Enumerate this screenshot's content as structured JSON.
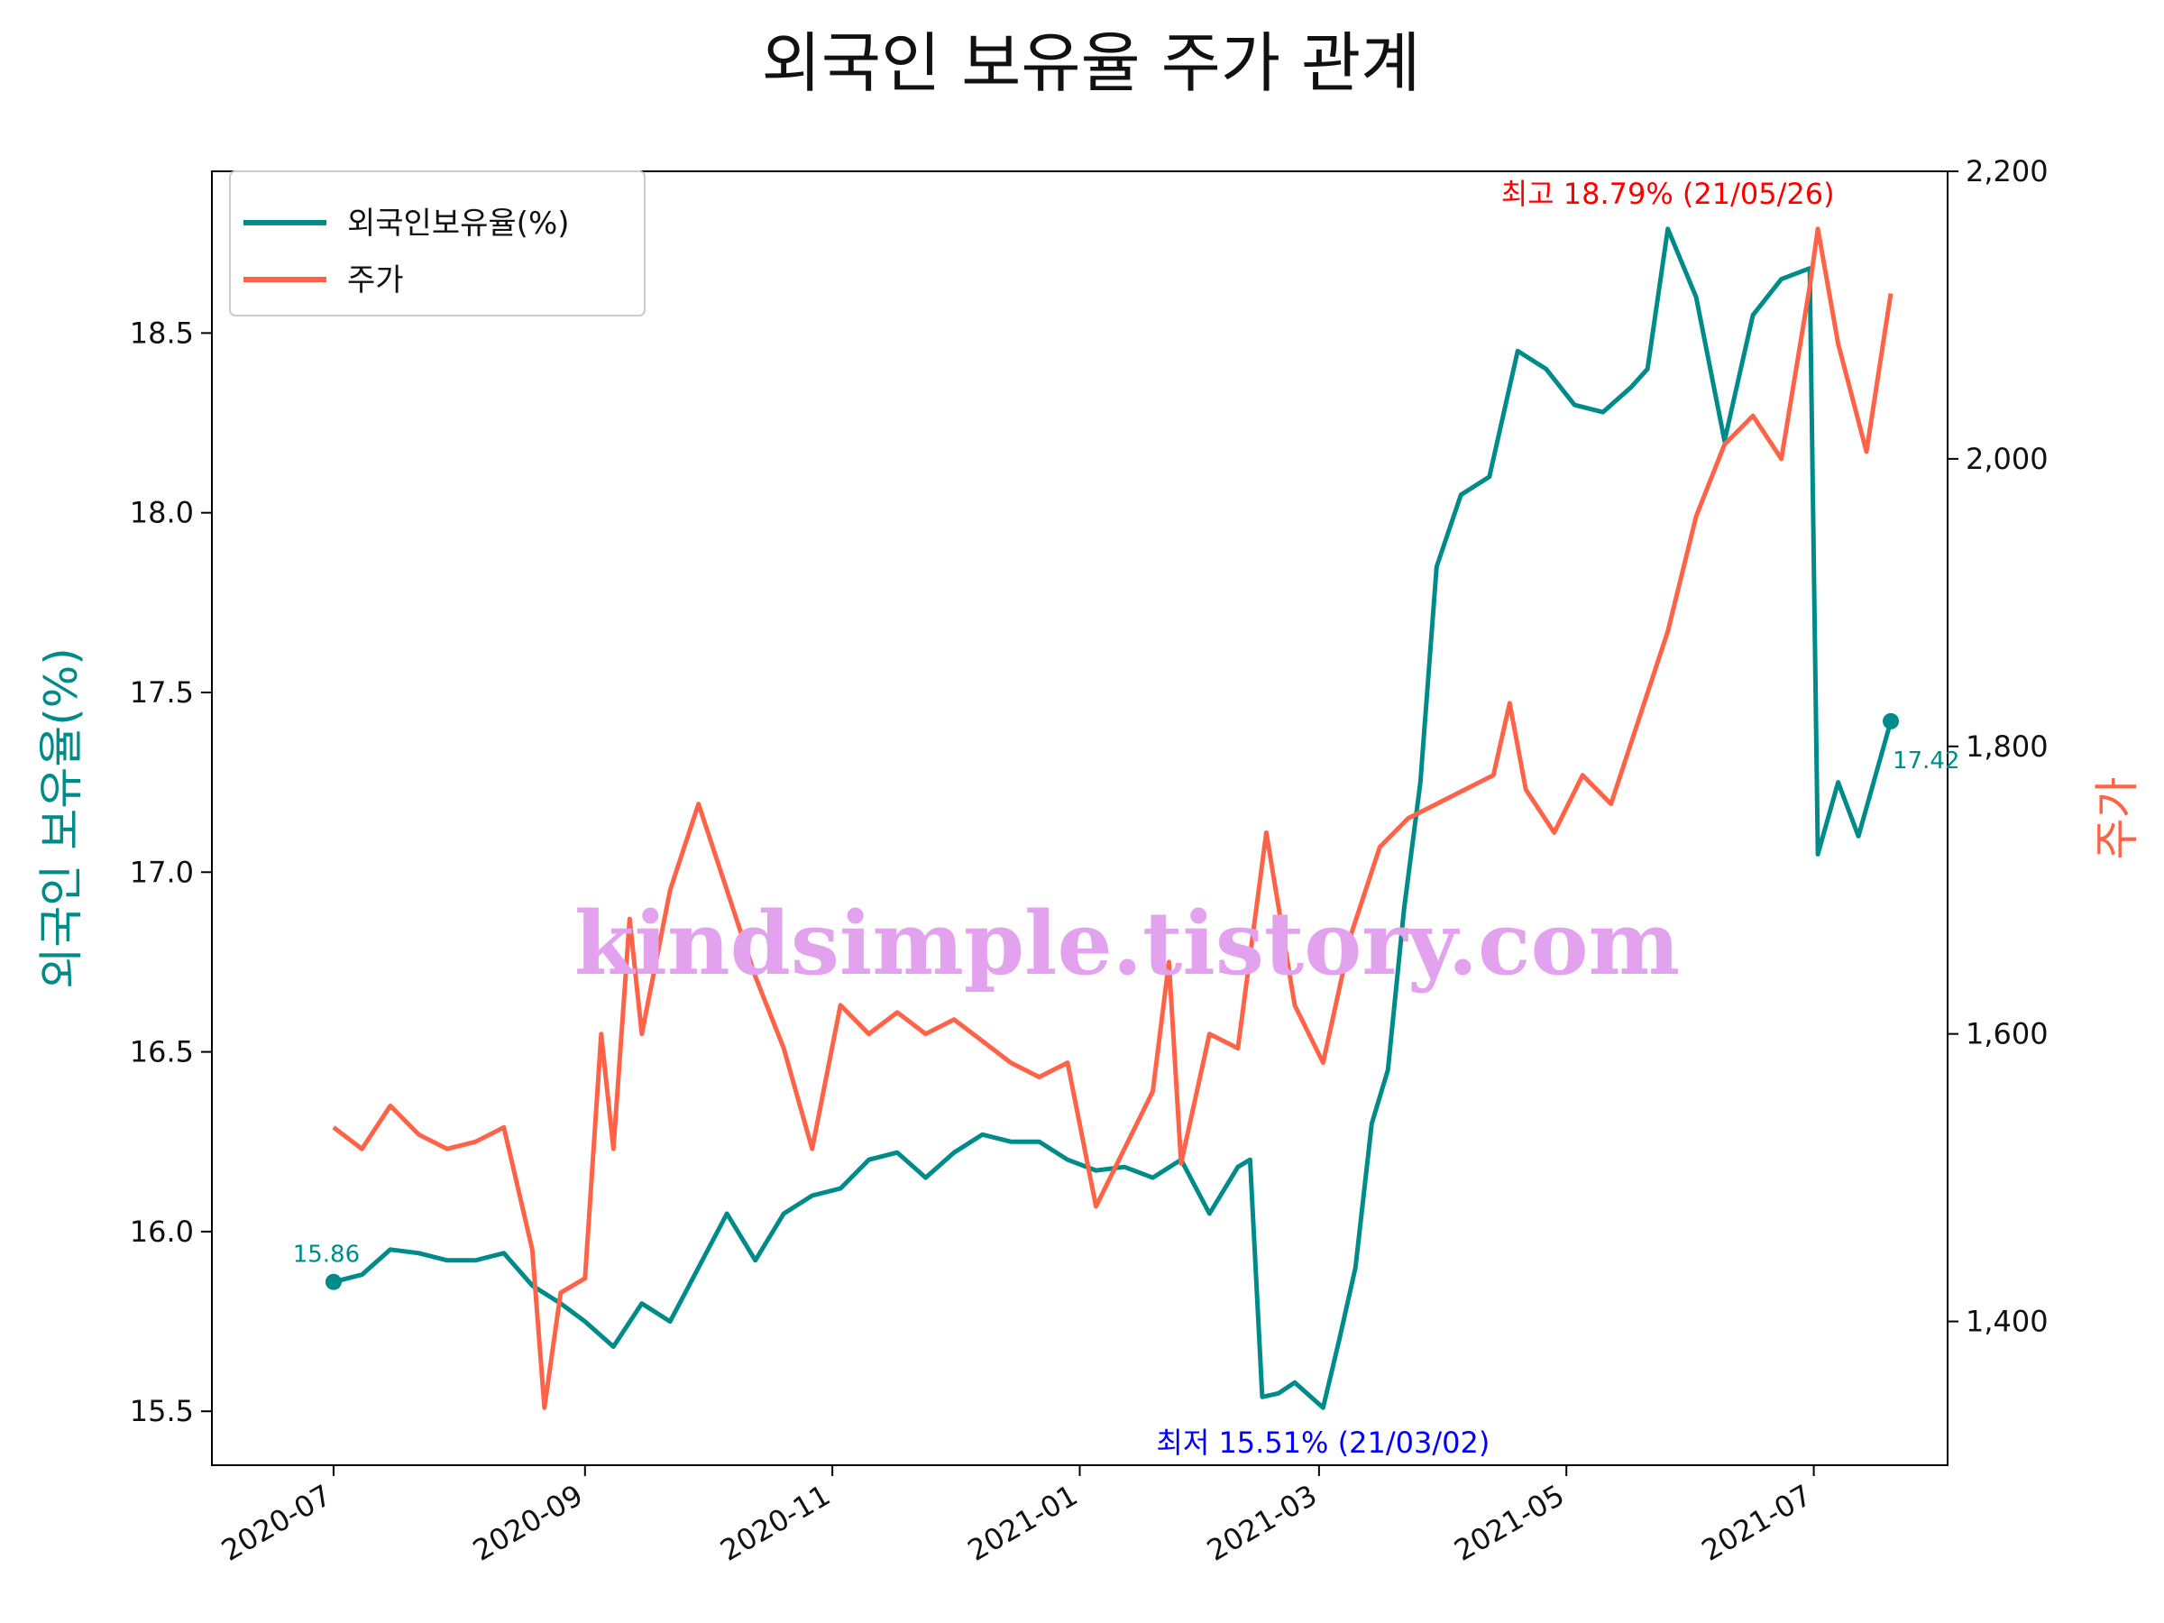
{
  "chart_data": {
    "type": "line",
    "title": "외국인 보유율 주가 관계",
    "ylabel_left": "외국인 보유율(%)",
    "ylabel_right": "주가",
    "ylim_left": [
      15.35,
      18.95
    ],
    "ylim_right": [
      1300,
      2200
    ],
    "yticks_left": [
      15.5,
      16.0,
      16.5,
      17.0,
      17.5,
      18.0,
      18.5
    ],
    "ytick_labels_left": [
      "15.5",
      "16.0",
      "16.5",
      "17.0",
      "17.5",
      "18.0",
      "18.5"
    ],
    "yticks_right": [
      1400,
      1600,
      1800,
      2000,
      2200
    ],
    "ytick_labels_right": [
      "1,400",
      "1,600",
      "1,800",
      "2,000",
      "2,200"
    ],
    "xlim": [
      "2020-06-01",
      "2021-08-03"
    ],
    "xticks": [
      "2020-07-01",
      "2020-09-01",
      "2020-11-01",
      "2021-01-01",
      "2021-03-01",
      "2021-05-01",
      "2021-07-01"
    ],
    "xtick_labels": [
      "2020-07",
      "2020-09",
      "2020-11",
      "2021-01",
      "2021-03",
      "2021-05",
      "2021-07"
    ],
    "legend": {
      "placement": "upper-left"
    },
    "series": [
      {
        "name": "외국인보유율(%)",
        "axis": "left",
        "color": "#008B8B",
        "points": [
          [
            "2020-07-01",
            15.86
          ],
          [
            "2020-07-08",
            15.88
          ],
          [
            "2020-07-15",
            15.95
          ],
          [
            "2020-07-22",
            15.94
          ],
          [
            "2020-07-29",
            15.92
          ],
          [
            "2020-08-05",
            15.92
          ],
          [
            "2020-08-12",
            15.94
          ],
          [
            "2020-08-19",
            15.85
          ],
          [
            "2020-08-26",
            15.8
          ],
          [
            "2020-09-01",
            15.75
          ],
          [
            "2020-09-08",
            15.68
          ],
          [
            "2020-09-15",
            15.8
          ],
          [
            "2020-09-22",
            15.75
          ],
          [
            "2020-09-29",
            15.9
          ],
          [
            "2020-10-06",
            16.05
          ],
          [
            "2020-10-13",
            15.92
          ],
          [
            "2020-10-20",
            16.05
          ],
          [
            "2020-10-27",
            16.1
          ],
          [
            "2020-11-03",
            16.12
          ],
          [
            "2020-11-10",
            16.2
          ],
          [
            "2020-11-17",
            16.22
          ],
          [
            "2020-11-24",
            16.15
          ],
          [
            "2020-12-01",
            16.22
          ],
          [
            "2020-12-08",
            16.27
          ],
          [
            "2020-12-15",
            16.25
          ],
          [
            "2020-12-22",
            16.25
          ],
          [
            "2020-12-29",
            16.2
          ],
          [
            "2021-01-05",
            16.17
          ],
          [
            "2021-01-12",
            16.18
          ],
          [
            "2021-01-19",
            16.15
          ],
          [
            "2021-01-26",
            16.2
          ],
          [
            "2021-02-02",
            16.05
          ],
          [
            "2021-02-09",
            16.18
          ],
          [
            "2021-02-12",
            16.2
          ],
          [
            "2021-02-15",
            15.54
          ],
          [
            "2021-02-19",
            15.55
          ],
          [
            "2021-02-23",
            15.58
          ],
          [
            "2021-03-02",
            15.51
          ],
          [
            "2021-03-06",
            15.7
          ],
          [
            "2021-03-10",
            15.9
          ],
          [
            "2021-03-14",
            16.3
          ],
          [
            "2021-03-18",
            16.45
          ],
          [
            "2021-03-22",
            16.9
          ],
          [
            "2021-03-26",
            17.25
          ],
          [
            "2021-03-30",
            17.85
          ],
          [
            "2021-04-05",
            18.05
          ],
          [
            "2021-04-12",
            18.1
          ],
          [
            "2021-04-19",
            18.45
          ],
          [
            "2021-04-26",
            18.4
          ],
          [
            "2021-05-03",
            18.3
          ],
          [
            "2021-05-10",
            18.28
          ],
          [
            "2021-05-17",
            18.35
          ],
          [
            "2021-05-21",
            18.4
          ],
          [
            "2021-05-26",
            18.79
          ],
          [
            "2021-06-02",
            18.6
          ],
          [
            "2021-06-09",
            18.2
          ],
          [
            "2021-06-16",
            18.55
          ],
          [
            "2021-06-23",
            18.65
          ],
          [
            "2021-06-30",
            18.68
          ],
          [
            "2021-07-02",
            17.05
          ],
          [
            "2021-07-07",
            17.25
          ],
          [
            "2021-07-12",
            17.1
          ],
          [
            "2021-07-20",
            17.42
          ]
        ]
      },
      {
        "name": "주가",
        "axis": "right",
        "color": "#FF6347",
        "points": [
          [
            "2020-07-01",
            1535
          ],
          [
            "2020-07-08",
            1520
          ],
          [
            "2020-07-15",
            1550
          ],
          [
            "2020-07-22",
            1530
          ],
          [
            "2020-07-29",
            1520
          ],
          [
            "2020-08-05",
            1525
          ],
          [
            "2020-08-12",
            1535
          ],
          [
            "2020-08-19",
            1450
          ],
          [
            "2020-08-22",
            1340
          ],
          [
            "2020-08-26",
            1420
          ],
          [
            "2020-09-01",
            1430
          ],
          [
            "2020-09-05",
            1600
          ],
          [
            "2020-09-08",
            1520
          ],
          [
            "2020-09-12",
            1680
          ],
          [
            "2020-09-15",
            1600
          ],
          [
            "2020-09-22",
            1700
          ],
          [
            "2020-09-29",
            1760
          ],
          [
            "2020-10-06",
            1700
          ],
          [
            "2020-10-13",
            1640
          ],
          [
            "2020-10-20",
            1590
          ],
          [
            "2020-10-27",
            1520
          ],
          [
            "2020-11-03",
            1620
          ],
          [
            "2020-11-10",
            1600
          ],
          [
            "2020-11-17",
            1615
          ],
          [
            "2020-11-24",
            1600
          ],
          [
            "2020-12-01",
            1610
          ],
          [
            "2020-12-08",
            1595
          ],
          [
            "2020-12-15",
            1580
          ],
          [
            "2020-12-22",
            1570
          ],
          [
            "2020-12-29",
            1580
          ],
          [
            "2021-01-05",
            1480
          ],
          [
            "2021-01-12",
            1520
          ],
          [
            "2021-01-19",
            1560
          ],
          [
            "2021-01-23",
            1650
          ],
          [
            "2021-01-26",
            1510
          ],
          [
            "2021-02-02",
            1600
          ],
          [
            "2021-02-09",
            1590
          ],
          [
            "2021-02-16",
            1740
          ],
          [
            "2021-02-23",
            1620
          ],
          [
            "2021-03-02",
            1580
          ],
          [
            "2021-03-09",
            1670
          ],
          [
            "2021-03-16",
            1730
          ],
          [
            "2021-03-23",
            1750
          ],
          [
            "2021-03-30",
            1760
          ],
          [
            "2021-04-06",
            1770
          ],
          [
            "2021-04-13",
            1780
          ],
          [
            "2021-04-17",
            1830
          ],
          [
            "2021-04-21",
            1770
          ],
          [
            "2021-04-28",
            1740
          ],
          [
            "2021-05-05",
            1780
          ],
          [
            "2021-05-12",
            1760
          ],
          [
            "2021-05-19",
            1820
          ],
          [
            "2021-05-26",
            1880
          ],
          [
            "2021-06-02",
            1960
          ],
          [
            "2021-06-09",
            2010
          ],
          [
            "2021-06-16",
            2030
          ],
          [
            "2021-06-23",
            2000
          ],
          [
            "2021-06-30",
            2120
          ],
          [
            "2021-07-02",
            2160
          ],
          [
            "2021-07-07",
            2080
          ],
          [
            "2021-07-14",
            2005
          ],
          [
            "2021-07-20",
            2115
          ]
        ]
      }
    ],
    "annotations": [
      {
        "kind": "max",
        "text": "최고 18.79% (21/05/26)",
        "date": "2021-05-26",
        "value": 18.79,
        "color": "#ff0000"
      },
      {
        "kind": "min",
        "text": "최저 15.51% (21/03/02)",
        "date": "2021-03-02",
        "value": 15.51,
        "color": "#0000ff"
      },
      {
        "kind": "start",
        "text": "15.86",
        "date": "2020-07-01",
        "value": 15.86
      },
      {
        "kind": "end",
        "text": "17.42",
        "date": "2021-07-20",
        "value": 17.42
      }
    ],
    "watermark": "kindsimple.tistory.com"
  }
}
